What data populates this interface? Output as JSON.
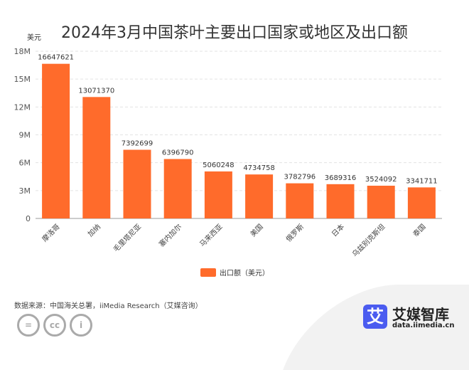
{
  "chart_data": {
    "type": "bar",
    "title": "2024年3月中国茶叶主要出口国家或地区及出口额",
    "ylabel": "美元",
    "categories": [
      "摩洛哥",
      "加纳",
      "毛里塔尼亚",
      "塞内加尔",
      "马来西亚",
      "美国",
      "俄罗斯",
      "日本",
      "乌兹别克斯坦",
      "泰国"
    ],
    "series": [
      {
        "name": "出口额（美元）",
        "values": [
          16647621,
          13071370,
          7392699,
          6396790,
          5060248,
          4734758,
          3782796,
          3689316,
          3524092,
          3341711
        ],
        "color": "#ff6b2b"
      }
    ],
    "ylim": [
      0,
      18000000
    ],
    "yticks": [
      0,
      3000000,
      6000000,
      9000000,
      12000000,
      15000000,
      18000000
    ],
    "ytick_labels": [
      "0",
      "3M",
      "6M",
      "9M",
      "12M",
      "15M",
      "18M"
    ],
    "grid": true,
    "legend": "bottom"
  },
  "footer": {
    "source": "数据来源：中国海关总署，iiMedia Research（艾媒咨询）",
    "license_icons": [
      "equals-icon",
      "cc-icon",
      "person-icon"
    ],
    "logo_glyph": "艾",
    "logo_name": "艾媒智库",
    "logo_url": "data.iimedia.cn"
  }
}
